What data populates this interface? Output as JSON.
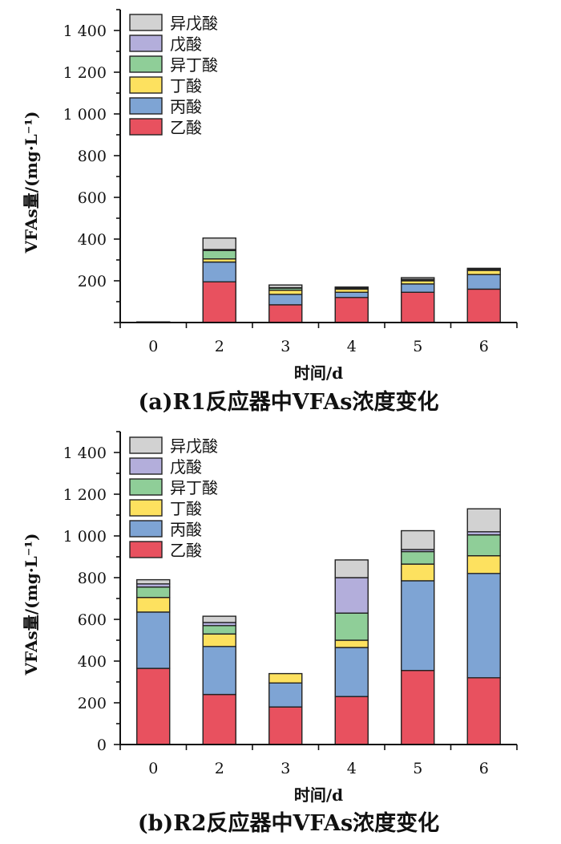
{
  "colors": {
    "乙酸": "#e8515f",
    "丙酸": "#7ea4d4",
    "丁酸": "#fde15f",
    "异丁酸": "#8fce98",
    "戊酸": "#b3aedb",
    "异戊酸": "#d2d2d2"
  },
  "chart_data": [
    {
      "type": "bar",
      "stacked": true,
      "caption": "(a)R1反应器中VFAs浓度变化",
      "xlabel": "时间/d",
      "ylabel": "VFAs量/(mg·L⁻¹)",
      "categories": [
        "0",
        "2",
        "3",
        "4",
        "5",
        "6"
      ],
      "ylim": [
        0,
        1500
      ],
      "yticks": [
        200,
        400,
        600,
        800,
        1000,
        1200,
        1400
      ],
      "ytick_labels": [
        "200",
        "400",
        "600",
        "800",
        "1 000",
        "1 200",
        "1 400"
      ],
      "legend": [
        "异戊酸",
        "戊酸",
        "异丁酸",
        "丁酸",
        "丙酸",
        "乙酸"
      ],
      "series": [
        {
          "name": "乙酸",
          "values": [
            0,
            195,
            85,
            120,
            145,
            160
          ]
        },
        {
          "name": "丙酸",
          "values": [
            0,
            95,
            50,
            25,
            40,
            70
          ]
        },
        {
          "name": "丁酸",
          "values": [
            0,
            15,
            20,
            15,
            15,
            20
          ]
        },
        {
          "name": "异丁酸",
          "values": [
            0,
            40,
            10,
            5,
            5,
            5
          ]
        },
        {
          "name": "戊酸",
          "values": [
            0,
            5,
            2,
            0,
            2,
            0
          ]
        },
        {
          "name": "异戊酸",
          "values": [
            3,
            55,
            13,
            5,
            8,
            5
          ]
        }
      ]
    },
    {
      "type": "bar",
      "stacked": true,
      "caption": "(b)R2反应器中VFAs浓度变化",
      "xlabel": "时间/d",
      "ylabel": "VFAs量/(mg·L⁻¹)",
      "categories": [
        "0",
        "2",
        "3",
        "4",
        "5",
        "6"
      ],
      "ylim": [
        0,
        1500
      ],
      "yticks": [
        0,
        200,
        400,
        600,
        800,
        1000,
        1200,
        1400
      ],
      "ytick_labels": [
        "0",
        "200",
        "400",
        "600",
        "800",
        "1 000",
        "1 200",
        "1 400"
      ],
      "legend": [
        "异戊酸",
        "戊酸",
        "异丁酸",
        "丁酸",
        "丙酸",
        "乙酸"
      ],
      "series": [
        {
          "name": "乙酸",
          "values": [
            365,
            240,
            180,
            230,
            355,
            320
          ]
        },
        {
          "name": "丙酸",
          "values": [
            270,
            230,
            115,
            235,
            430,
            500
          ]
        },
        {
          "name": "丁酸",
          "values": [
            70,
            60,
            45,
            35,
            80,
            85
          ]
        },
        {
          "name": "异丁酸",
          "values": [
            50,
            40,
            0,
            130,
            60,
            100
          ]
        },
        {
          "name": "戊酸",
          "values": [
            15,
            15,
            0,
            170,
            10,
            15
          ]
        },
        {
          "name": "异戊酸",
          "values": [
            20,
            30,
            0,
            85,
            90,
            110
          ]
        }
      ]
    }
  ]
}
